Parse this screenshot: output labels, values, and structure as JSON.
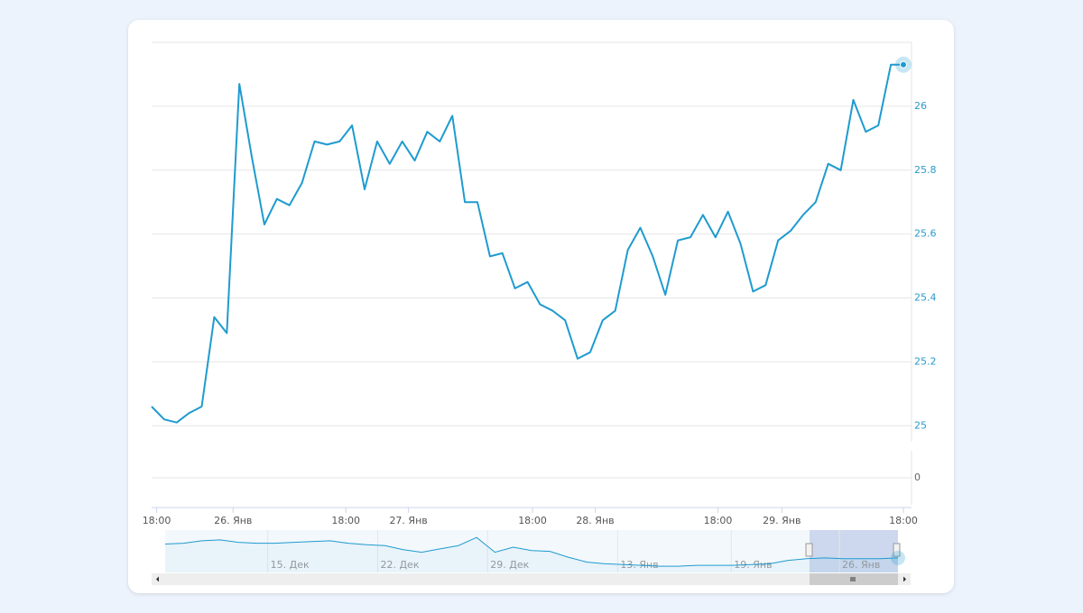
{
  "chart_data": {
    "type": "line",
    "series": [
      {
        "color": "#1f9bcf",
        "values": [
          25.06,
          25.02,
          25.01,
          25.04,
          25.06,
          25.34,
          25.29,
          26.07,
          25.84,
          25.63,
          25.71,
          25.69,
          25.76,
          25.89,
          25.88,
          25.89,
          25.94,
          25.74,
          25.89,
          25.82,
          25.89,
          25.83,
          25.92,
          25.89,
          25.97,
          25.7,
          25.7,
          25.53,
          25.54,
          25.43,
          25.45,
          25.38,
          25.36,
          25.33,
          25.21,
          25.23,
          25.33,
          25.36,
          25.55,
          25.62,
          25.53,
          25.41,
          25.58,
          25.59,
          25.66,
          25.59,
          25.67,
          25.57,
          25.42,
          25.44,
          25.58,
          25.61,
          25.66,
          25.7,
          25.82,
          25.8,
          26.02,
          25.92,
          25.94,
          26.13,
          26.13
        ]
      }
    ],
    "xlim": [
      0,
      60
    ],
    "xticks": [
      {
        "value": 0.4,
        "label": "18:00"
      },
      {
        "value": 6.5,
        "label": "26. Янв"
      },
      {
        "value": 15.5,
        "label": "18:00"
      },
      {
        "value": 20.5,
        "label": "27. Янв"
      },
      {
        "value": 30.4,
        "label": "18:00"
      },
      {
        "value": 35.4,
        "label": "28. Янв"
      },
      {
        "value": 45.2,
        "label": "18:00"
      },
      {
        "value": 50.3,
        "label": "29. Янв"
      },
      {
        "value": 60,
        "label": "18:00"
      }
    ],
    "ylim": [
      24.95,
      26.2
    ],
    "yticks": [
      25,
      25.2,
      25.4,
      25.6,
      25.8,
      26
    ],
    "y2ticks": [
      0
    ],
    "grid": true,
    "navigator": {
      "color": "#1f9bcf",
      "values": [
        27.35,
        27.42,
        27.64,
        27.72,
        27.5,
        27.42,
        27.42,
        27.5,
        27.57,
        27.64,
        27.42,
        27.28,
        27.2,
        26.84,
        26.61,
        26.91,
        27.2,
        27.94,
        26.61,
        27.06,
        26.76,
        26.69,
        26.17,
        25.73,
        25.58,
        25.51,
        25.44,
        25.36,
        25.36,
        25.44,
        25.44,
        25.44,
        25.51,
        25.58,
        25.88,
        26.03,
        26.1,
        26.03,
        26.03,
        26.03,
        26.1
      ],
      "xlim": [
        0,
        40
      ],
      "ylim": [
        24.8,
        28.6
      ],
      "xticks": [
        {
          "value": 5.6,
          "label": "15. Дек"
        },
        {
          "value": 11.6,
          "label": "22. Дек"
        },
        {
          "value": 17.6,
          "label": "29. Дек"
        },
        {
          "value": 24.7,
          "label": "13. Янв"
        },
        {
          "value": 30.9,
          "label": "19. Янв"
        },
        {
          "value": 36.8,
          "label": "26. Янв"
        }
      ]
    }
  }
}
